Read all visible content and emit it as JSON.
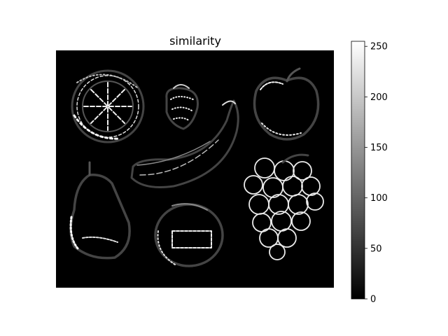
{
  "chart_data": {
    "type": "heatmap",
    "title": "similarity",
    "colormap": "gray",
    "colorbar": {
      "range": [
        0,
        255
      ],
      "ticks": [
        0,
        50,
        100,
        150,
        200,
        250
      ],
      "tick_labels": [
        "0",
        "50",
        "100",
        "150",
        "200",
        "250"
      ]
    },
    "image_content": [
      "orange-slice",
      "strawberry",
      "apple",
      "banana",
      "pear",
      "peach",
      "grapes"
    ],
    "colors": {
      "background": "#000000",
      "edge_dark": "#3a3a3a",
      "edge_light": "#f2f2f2"
    }
  }
}
